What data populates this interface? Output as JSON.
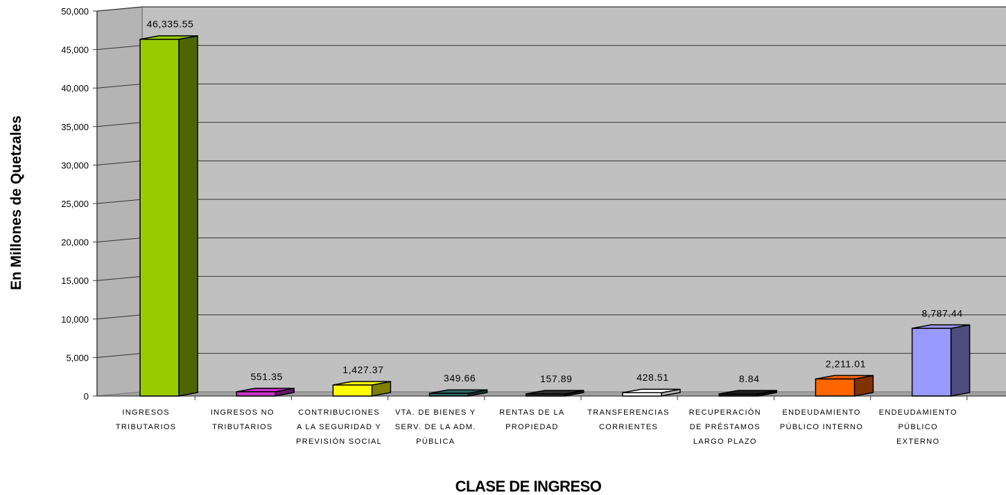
{
  "chart_data": {
    "type": "bar",
    "ylabel": "En Millones de Quetzales",
    "xlabel": "CLASE DE INGRESO",
    "ylim": [
      0,
      50000
    ],
    "ytick_step": 5000,
    "grid": true,
    "ytick_labels": [
      "0",
      "5,000",
      "10,000",
      "15,000",
      "20,000",
      "25,000",
      "30,000",
      "35,000",
      "40,000",
      "45,000",
      "50,000"
    ],
    "categories": [
      [
        "INGRESOS",
        "TRIBUTARIOS"
      ],
      [
        "INGRESOS NO",
        "TRIBUTARIOS"
      ],
      [
        "CONTRIBUCIONES",
        "A LA SEGURIDAD Y",
        "PREVISIÓN SOCIAL"
      ],
      [
        "VTA. DE BIENES Y",
        "SERV. DE LA ADM.",
        "PÚBLICA"
      ],
      [
        "RENTAS DE LA",
        "PROPIEDAD"
      ],
      [
        "TRANSFERENCIAS",
        "CORRIENTES"
      ],
      [
        "RECUPERACIÓN",
        "DE PRÉSTAMOS",
        "LARGO PLAZO"
      ],
      [
        "ENDEUDAMIENTO",
        "PÚBLICO INTERNO"
      ],
      [
        "ENDEUDAMIENTO",
        "PÚBLICO",
        "EXTERNO"
      ]
    ],
    "values": [
      46335.55,
      551.35,
      1427.37,
      349.66,
      157.89,
      428.51,
      8.84,
      2211.01,
      8787.44
    ],
    "value_labels": [
      "46,335.55",
      "551.35",
      "1,427.37",
      "349.66",
      "157.89",
      "428.51",
      "8.84",
      "2,211.01",
      "8,787.44"
    ],
    "colors": [
      "#99cc00",
      "#cc33cc",
      "#ffff00",
      "#336666",
      "#333333",
      "#ffffff",
      "#222222",
      "#ff6600",
      "#9999ff"
    ],
    "side_colors": [
      "#4d6600",
      "#661a66",
      "#808000",
      "#1a3333",
      "#1a1a1a",
      "#b0b0b0",
      "#111111",
      "#803300",
      "#4d4d80"
    ]
  }
}
